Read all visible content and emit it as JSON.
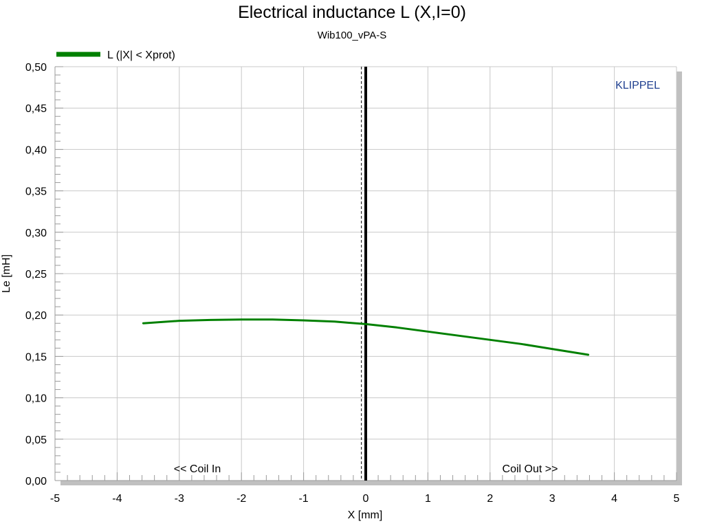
{
  "chart_data": {
    "type": "line",
    "title": "Electrical inductance L (X,I=0)",
    "subtitle": "Wib100_vPA-S",
    "xlabel": "X [mm]",
    "ylabel": "Le [mH]",
    "xlim": [
      -5,
      5
    ],
    "ylim": [
      0,
      0.5
    ],
    "x_ticks": [
      "-5",
      "-4",
      "-3",
      "-2",
      "-1",
      "0",
      "1",
      "2",
      "3",
      "4",
      "5"
    ],
    "y_ticks": [
      "0,00",
      "0,05",
      "0,10",
      "0,15",
      "0,20",
      "0,25",
      "0,30",
      "0,35",
      "0,40",
      "0,45",
      "0,50"
    ],
    "grid": true,
    "legend_position": "top-left",
    "series": [
      {
        "name": "L (|X| < Xprot)",
        "color": "#008000",
        "x": [
          -3.58,
          -3.0,
          -2.5,
          -2.0,
          -1.5,
          -1.0,
          -0.5,
          0.0,
          0.5,
          1.0,
          1.5,
          2.0,
          2.5,
          3.0,
          3.58
        ],
        "y": [
          0.19,
          0.193,
          0.194,
          0.1945,
          0.1945,
          0.1935,
          0.192,
          0.189,
          0.185,
          0.18,
          0.175,
          0.17,
          0.165,
          0.159,
          0.152
        ]
      }
    ],
    "reference_lines": {
      "solid_x": 0.0,
      "dashed_x": -0.07
    },
    "annotations": {
      "left": "<< Coil In",
      "right": "Coil Out >>",
      "brand": "KLIPPEL"
    }
  },
  "colors": {
    "series": "#008000",
    "brand": "#1f3f8f",
    "grid": "#c8c8c8",
    "frame_shadow": "#c0c0c0"
  }
}
